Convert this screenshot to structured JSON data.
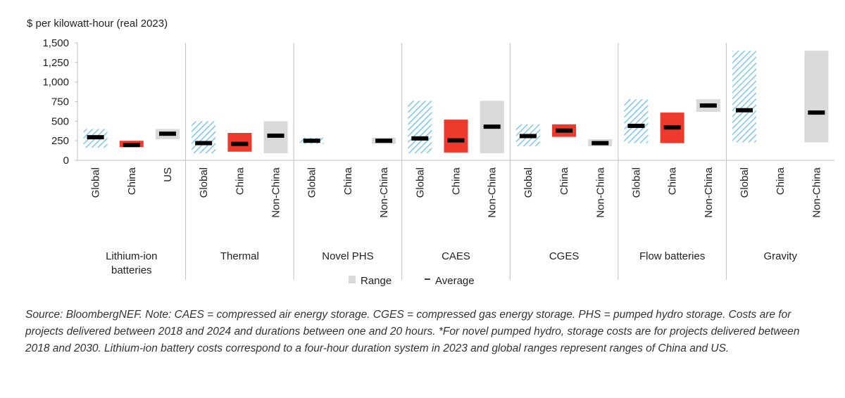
{
  "chart_data": {
    "type": "bar",
    "ylabel": "$ per kilowatt-hour (real 2023)",
    "yticks": [
      "1,500",
      "1,250",
      "1,000",
      "750",
      "500",
      "250",
      "0"
    ],
    "ylim": [
      0,
      1500
    ],
    "grid": false,
    "legend": {
      "placement": "bottom",
      "range_label": "Range",
      "average_label": "Average"
    },
    "colors": {
      "range_gray": "#d9d9d9",
      "china_red": "#ee3a2c",
      "hatch_blue": "#7fc7ec",
      "average_black": "#000000"
    },
    "groups": [
      {
        "name": "Lithium-ion\nbatteries",
        "bars": [
          {
            "label": "Global",
            "style": "hatch",
            "low": 160,
            "high": 400,
            "avg": 295
          },
          {
            "label": "China",
            "style": "red",
            "low": 170,
            "high": 250,
            "avg": 195
          },
          {
            "label": "US",
            "style": "gray",
            "low": 270,
            "high": 400,
            "avg": 340
          }
        ]
      },
      {
        "name": "Thermal",
        "bars": [
          {
            "label": "Global",
            "style": "hatch",
            "low": 90,
            "high": 500,
            "avg": 220
          },
          {
            "label": "China",
            "style": "red",
            "low": 110,
            "high": 350,
            "avg": 210
          },
          {
            "label": "Non-China",
            "style": "gray",
            "low": 90,
            "high": 500,
            "avg": 315
          }
        ]
      },
      {
        "name": "Novel PHS",
        "bars": [
          {
            "label": "Global",
            "style": "hatch",
            "low": 210,
            "high": 290,
            "avg": 250
          },
          {
            "label": "China",
            "style": "none",
            "low": null,
            "high": null,
            "avg": null
          },
          {
            "label": "Non-China",
            "style": "gray",
            "low": 210,
            "high": 290,
            "avg": 250
          }
        ]
      },
      {
        "name": "CAES",
        "bars": [
          {
            "label": "Global",
            "style": "hatch",
            "low": 90,
            "high": 760,
            "avg": 280
          },
          {
            "label": "China",
            "style": "red",
            "low": 100,
            "high": 520,
            "avg": 255
          },
          {
            "label": "Non-China",
            "style": "gray",
            "low": 90,
            "high": 760,
            "avg": 430
          }
        ]
      },
      {
        "name": "CGES",
        "bars": [
          {
            "label": "Global",
            "style": "hatch",
            "low": 180,
            "high": 460,
            "avg": 310
          },
          {
            "label": "China",
            "style": "red",
            "low": 300,
            "high": 460,
            "avg": 380
          },
          {
            "label": "Non-China",
            "style": "gray",
            "low": 180,
            "high": 270,
            "avg": 220
          }
        ]
      },
      {
        "name": "Flow batteries",
        "bars": [
          {
            "label": "Global",
            "style": "hatch",
            "low": 220,
            "high": 780,
            "avg": 440
          },
          {
            "label": "China",
            "style": "red",
            "low": 220,
            "high": 610,
            "avg": 420
          },
          {
            "label": "Non-China",
            "style": "gray",
            "low": 620,
            "high": 780,
            "avg": 700
          }
        ]
      },
      {
        "name": "Gravity",
        "bars": [
          {
            "label": "Global",
            "style": "hatch",
            "low": 230,
            "high": 1400,
            "avg": 640
          },
          {
            "label": "China",
            "style": "none",
            "low": null,
            "high": null,
            "avg": null
          },
          {
            "label": "Non-China",
            "style": "gray",
            "low": 230,
            "high": 1400,
            "avg": 610
          }
        ]
      }
    ]
  },
  "footnote": "Source: BloombergNEF. Note: CAES = compressed air energy storage. CGES = compressed gas energy storage. PHS = pumped hydro storage. Costs are for projects delivered between 2018 and 2024 and durations between one and 20 hours. *For novel pumped hydro, storage costs are for projects delivered between 2018 and 2030. Lithium-ion battery costs correspond to a four-hour duration system in 2023 and global ranges represent ranges of China and US."
}
